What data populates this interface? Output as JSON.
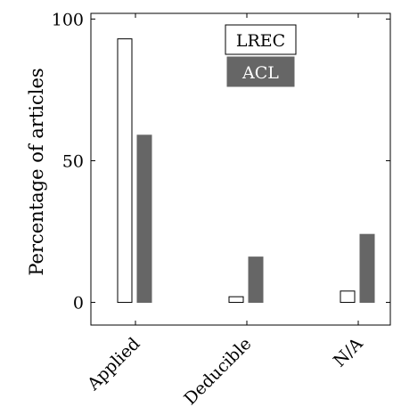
{
  "chart_data": {
    "type": "bar",
    "categories": [
      "Applied",
      "Deducible",
      "N/A"
    ],
    "series": [
      {
        "name": "LREC",
        "values": [
          93,
          2,
          4
        ],
        "color": "#ffffff",
        "stroke": "#000000"
      },
      {
        "name": "ACL",
        "values": [
          59,
          16,
          24
        ],
        "color": "#666666",
        "stroke": "#666666"
      }
    ],
    "ylabel": "Percentage of articles",
    "xlabel": "",
    "ylim": [
      -8,
      102
    ],
    "yticks": [
      0,
      50,
      100
    ],
    "legend": {
      "placement": "top-center",
      "labels": [
        "LREC",
        "ACL"
      ]
    },
    "grid": false
  }
}
